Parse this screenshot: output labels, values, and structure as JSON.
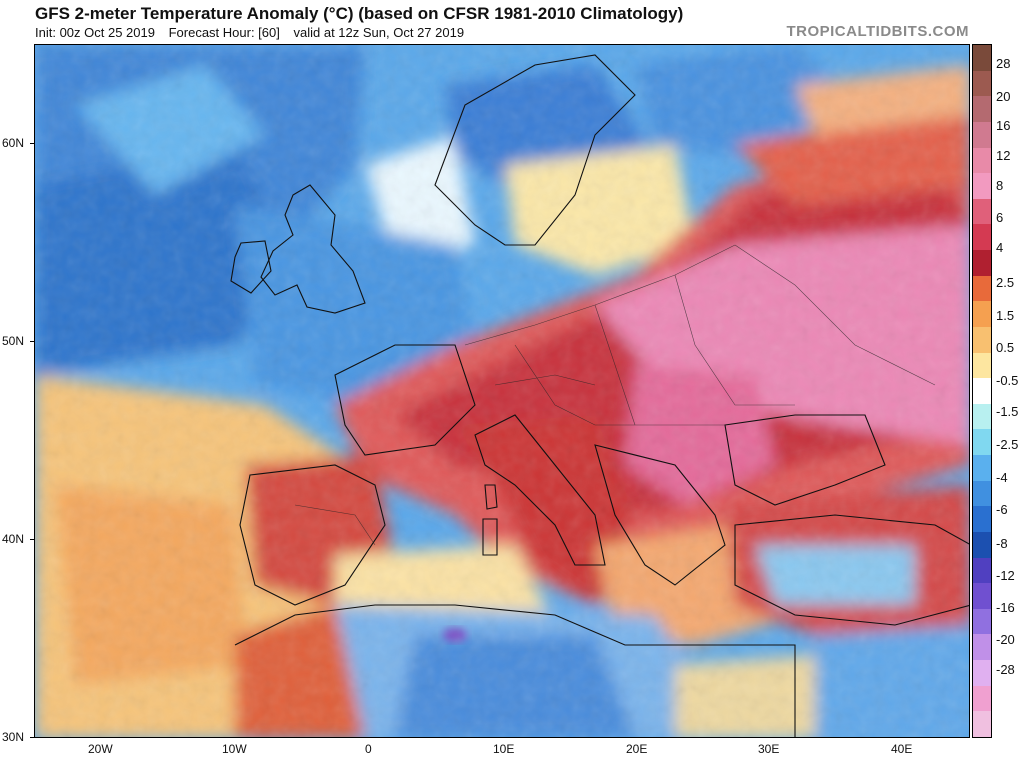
{
  "header": {
    "title": "GFS 2-meter Temperature Anomaly (°C) (based on CFSR 1981-2010 Climatology)",
    "init": "Init: 00z Oct 25 2019",
    "forecast_hour": "Forecast Hour: [60]",
    "valid": "valid at 12z Sun, Oct 27 2019",
    "brand": "TROPICALTIDBITS.COM"
  },
  "map": {
    "lat_labels": [
      "60N",
      "50N",
      "40N",
      "30N"
    ],
    "lon_labels": [
      "20W",
      "10W",
      "0",
      "10E",
      "20E",
      "30E",
      "40E"
    ]
  },
  "colorbar": {
    "labels": [
      "28",
      "20",
      "16",
      "12",
      "8",
      "6",
      "4",
      "2.5",
      "1.5",
      "0.5",
      "-0.5",
      "-1.5",
      "-2.5",
      "-4",
      "-6",
      "-8",
      "-12",
      "-16",
      "-20",
      "-28"
    ],
    "colors": [
      "#7a4a3a",
      "#9c5a50",
      "#b46a70",
      "#d07a90",
      "#e88aa8",
      "#f29ac0",
      "#e0607a",
      "#d43a52",
      "#b02030",
      "#e86a3a",
      "#f5a050",
      "#f8c070",
      "#fde6a0",
      "#ffffff",
      "#b8f0f0",
      "#80d8f0",
      "#5ab0ee",
      "#4090e0",
      "#2a70d0",
      "#1c50b0",
      "#5040c0",
      "#7050d0",
      "#9070e0",
      "#c090e8",
      "#e0b0f0",
      "#f0a0d0",
      "#f0c0e0"
    ]
  }
}
